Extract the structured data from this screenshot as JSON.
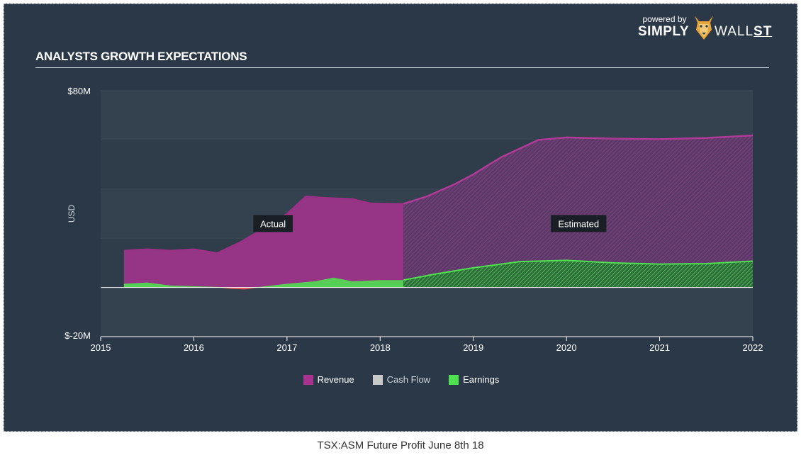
{
  "brand": {
    "powered_by": "powered by",
    "simply": "SIMPLY",
    "wall": "WALL",
    "st": "ST"
  },
  "caption": "TSX:ASM Future Profit June 8th 18",
  "colors": {
    "revenue": "#a8338f",
    "cash_flow": "#c8c8c8",
    "earnings": "#4fe04f",
    "earnings_negative": "#e0504f",
    "background": "#2b3847"
  },
  "chart_data": {
    "type": "area",
    "title": "ANALYSTS GROWTH EXPECTATIONS",
    "xlabel": "",
    "ylabel": "USD",
    "xlim": [
      2015,
      2022
    ],
    "ylim": [
      -20,
      80
    ],
    "x_ticks": [
      "2015",
      "2016",
      "2017",
      "2018",
      "2019",
      "2020",
      "2021",
      "2022"
    ],
    "y_ticks": [
      "$80M",
      "$-20M"
    ],
    "grid": true,
    "actual_end": 2018.25,
    "regions": [
      {
        "label": "Actual",
        "x": 1016.75
      },
      {
        "label": "Estimated",
        "x": 2019.1
      }
    ],
    "legend_position": "bottom",
    "series": [
      {
        "name": "Revenue",
        "points": [
          [
            2015.25,
            15
          ],
          [
            2015.5,
            15.6
          ],
          [
            2015.75,
            15
          ],
          [
            2016.0,
            15.6
          ],
          [
            2016.25,
            14
          ],
          [
            2016.5,
            18.5
          ],
          [
            2016.75,
            24
          ],
          [
            2017.0,
            30
          ],
          [
            2017.2,
            37
          ],
          [
            2017.4,
            36.5
          ],
          [
            2017.7,
            36
          ],
          [
            2017.9,
            34.2
          ],
          [
            2018.25,
            34
          ],
          [
            2018.5,
            37
          ],
          [
            2018.8,
            42
          ],
          [
            2019.0,
            46
          ],
          [
            2019.3,
            53
          ],
          [
            2019.7,
            60
          ],
          [
            2020.0,
            61
          ],
          [
            2020.5,
            60.5
          ],
          [
            2021.0,
            60.3
          ],
          [
            2021.5,
            60.8
          ],
          [
            2022.0,
            61.8
          ]
        ]
      },
      {
        "name": "Cash Flow",
        "points": []
      },
      {
        "name": "Earnings",
        "points": [
          [
            2015.25,
            1.5
          ],
          [
            2015.5,
            2
          ],
          [
            2015.75,
            0.8
          ],
          [
            2016.0,
            0.5
          ],
          [
            2016.25,
            0.2
          ],
          [
            2016.4,
            -0.6
          ],
          [
            2016.55,
            -0.8
          ],
          [
            2016.7,
            0.2
          ],
          [
            2017.0,
            1.5
          ],
          [
            2017.3,
            2.5
          ],
          [
            2017.5,
            4
          ],
          [
            2017.7,
            2.5
          ],
          [
            2018.0,
            3
          ],
          [
            2018.25,
            3
          ],
          [
            2018.6,
            5.5
          ],
          [
            2019.0,
            8
          ],
          [
            2019.5,
            10.5
          ],
          [
            2020.0,
            11
          ],
          [
            2020.5,
            10
          ],
          [
            2021.0,
            9.5
          ],
          [
            2021.5,
            9.7
          ],
          [
            2022.0,
            10.7
          ]
        ]
      }
    ]
  }
}
